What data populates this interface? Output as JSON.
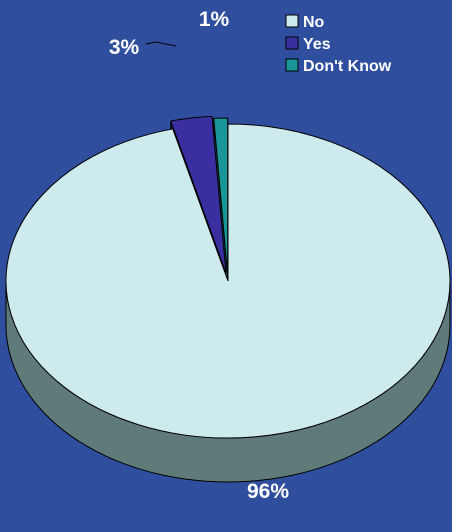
{
  "colors": {
    "background": "#2f4f9e",
    "outline": "#000000",
    "text": "#ffffff"
  },
  "chart_data": {
    "type": "pie",
    "title": "",
    "three_d": true,
    "exploded": [
      "Yes",
      "Don't Know"
    ],
    "legend_position": "top-right",
    "slices": [
      {
        "label": "No",
        "value": 96,
        "display": "96%",
        "color": "#cdeaec",
        "side_color": "#5e7a79"
      },
      {
        "label": "Yes",
        "value": 3,
        "display": "3%",
        "color": "#3a2fa0",
        "side_color": "#1d1858"
      },
      {
        "label": "Don't Know",
        "value": 1,
        "display": "1%",
        "color": "#1a9598",
        "side_color": "#0d4f51"
      }
    ]
  }
}
